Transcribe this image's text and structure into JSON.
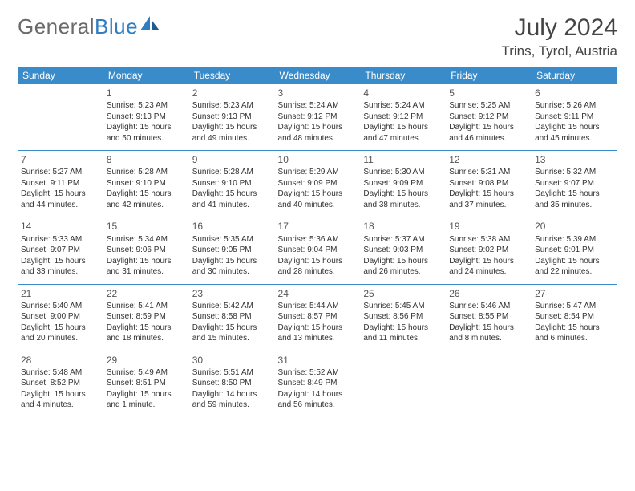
{
  "logo": {
    "part1": "General",
    "part2": "Blue"
  },
  "title": "July 2024",
  "location": "Trins, Tyrol, Austria",
  "weekdays": [
    "Sunday",
    "Monday",
    "Tuesday",
    "Wednesday",
    "Thursday",
    "Friday",
    "Saturday"
  ],
  "colors": {
    "header_bg": "#3a8bc9",
    "header_text": "#ffffff",
    "rule": "#3a8bc9",
    "logo_gray": "#6a6a6a",
    "logo_blue": "#2f7ec2"
  },
  "weeks": [
    [
      null,
      {
        "n": "1",
        "l1": "Sunrise: 5:23 AM",
        "l2": "Sunset: 9:13 PM",
        "l3": "Daylight: 15 hours",
        "l4": "and 50 minutes."
      },
      {
        "n": "2",
        "l1": "Sunrise: 5:23 AM",
        "l2": "Sunset: 9:13 PM",
        "l3": "Daylight: 15 hours",
        "l4": "and 49 minutes."
      },
      {
        "n": "3",
        "l1": "Sunrise: 5:24 AM",
        "l2": "Sunset: 9:12 PM",
        "l3": "Daylight: 15 hours",
        "l4": "and 48 minutes."
      },
      {
        "n": "4",
        "l1": "Sunrise: 5:24 AM",
        "l2": "Sunset: 9:12 PM",
        "l3": "Daylight: 15 hours",
        "l4": "and 47 minutes."
      },
      {
        "n": "5",
        "l1": "Sunrise: 5:25 AM",
        "l2": "Sunset: 9:12 PM",
        "l3": "Daylight: 15 hours",
        "l4": "and 46 minutes."
      },
      {
        "n": "6",
        "l1": "Sunrise: 5:26 AM",
        "l2": "Sunset: 9:11 PM",
        "l3": "Daylight: 15 hours",
        "l4": "and 45 minutes."
      }
    ],
    [
      {
        "n": "7",
        "l1": "Sunrise: 5:27 AM",
        "l2": "Sunset: 9:11 PM",
        "l3": "Daylight: 15 hours",
        "l4": "and 44 minutes."
      },
      {
        "n": "8",
        "l1": "Sunrise: 5:28 AM",
        "l2": "Sunset: 9:10 PM",
        "l3": "Daylight: 15 hours",
        "l4": "and 42 minutes."
      },
      {
        "n": "9",
        "l1": "Sunrise: 5:28 AM",
        "l2": "Sunset: 9:10 PM",
        "l3": "Daylight: 15 hours",
        "l4": "and 41 minutes."
      },
      {
        "n": "10",
        "l1": "Sunrise: 5:29 AM",
        "l2": "Sunset: 9:09 PM",
        "l3": "Daylight: 15 hours",
        "l4": "and 40 minutes."
      },
      {
        "n": "11",
        "l1": "Sunrise: 5:30 AM",
        "l2": "Sunset: 9:09 PM",
        "l3": "Daylight: 15 hours",
        "l4": "and 38 minutes."
      },
      {
        "n": "12",
        "l1": "Sunrise: 5:31 AM",
        "l2": "Sunset: 9:08 PM",
        "l3": "Daylight: 15 hours",
        "l4": "and 37 minutes."
      },
      {
        "n": "13",
        "l1": "Sunrise: 5:32 AM",
        "l2": "Sunset: 9:07 PM",
        "l3": "Daylight: 15 hours",
        "l4": "and 35 minutes."
      }
    ],
    [
      {
        "n": "14",
        "l1": "Sunrise: 5:33 AM",
        "l2": "Sunset: 9:07 PM",
        "l3": "Daylight: 15 hours",
        "l4": "and 33 minutes."
      },
      {
        "n": "15",
        "l1": "Sunrise: 5:34 AM",
        "l2": "Sunset: 9:06 PM",
        "l3": "Daylight: 15 hours",
        "l4": "and 31 minutes."
      },
      {
        "n": "16",
        "l1": "Sunrise: 5:35 AM",
        "l2": "Sunset: 9:05 PM",
        "l3": "Daylight: 15 hours",
        "l4": "and 30 minutes."
      },
      {
        "n": "17",
        "l1": "Sunrise: 5:36 AM",
        "l2": "Sunset: 9:04 PM",
        "l3": "Daylight: 15 hours",
        "l4": "and 28 minutes."
      },
      {
        "n": "18",
        "l1": "Sunrise: 5:37 AM",
        "l2": "Sunset: 9:03 PM",
        "l3": "Daylight: 15 hours",
        "l4": "and 26 minutes."
      },
      {
        "n": "19",
        "l1": "Sunrise: 5:38 AM",
        "l2": "Sunset: 9:02 PM",
        "l3": "Daylight: 15 hours",
        "l4": "and 24 minutes."
      },
      {
        "n": "20",
        "l1": "Sunrise: 5:39 AM",
        "l2": "Sunset: 9:01 PM",
        "l3": "Daylight: 15 hours",
        "l4": "and 22 minutes."
      }
    ],
    [
      {
        "n": "21",
        "l1": "Sunrise: 5:40 AM",
        "l2": "Sunset: 9:00 PM",
        "l3": "Daylight: 15 hours",
        "l4": "and 20 minutes."
      },
      {
        "n": "22",
        "l1": "Sunrise: 5:41 AM",
        "l2": "Sunset: 8:59 PM",
        "l3": "Daylight: 15 hours",
        "l4": "and 18 minutes."
      },
      {
        "n": "23",
        "l1": "Sunrise: 5:42 AM",
        "l2": "Sunset: 8:58 PM",
        "l3": "Daylight: 15 hours",
        "l4": "and 15 minutes."
      },
      {
        "n": "24",
        "l1": "Sunrise: 5:44 AM",
        "l2": "Sunset: 8:57 PM",
        "l3": "Daylight: 15 hours",
        "l4": "and 13 minutes."
      },
      {
        "n": "25",
        "l1": "Sunrise: 5:45 AM",
        "l2": "Sunset: 8:56 PM",
        "l3": "Daylight: 15 hours",
        "l4": "and 11 minutes."
      },
      {
        "n": "26",
        "l1": "Sunrise: 5:46 AM",
        "l2": "Sunset: 8:55 PM",
        "l3": "Daylight: 15 hours",
        "l4": "and 8 minutes."
      },
      {
        "n": "27",
        "l1": "Sunrise: 5:47 AM",
        "l2": "Sunset: 8:54 PM",
        "l3": "Daylight: 15 hours",
        "l4": "and 6 minutes."
      }
    ],
    [
      {
        "n": "28",
        "l1": "Sunrise: 5:48 AM",
        "l2": "Sunset: 8:52 PM",
        "l3": "Daylight: 15 hours",
        "l4": "and 4 minutes."
      },
      {
        "n": "29",
        "l1": "Sunrise: 5:49 AM",
        "l2": "Sunset: 8:51 PM",
        "l3": "Daylight: 15 hours",
        "l4": "and 1 minute."
      },
      {
        "n": "30",
        "l1": "Sunrise: 5:51 AM",
        "l2": "Sunset: 8:50 PM",
        "l3": "Daylight: 14 hours",
        "l4": "and 59 minutes."
      },
      {
        "n": "31",
        "l1": "Sunrise: 5:52 AM",
        "l2": "Sunset: 8:49 PM",
        "l3": "Daylight: 14 hours",
        "l4": "and 56 minutes."
      },
      null,
      null,
      null
    ]
  ]
}
